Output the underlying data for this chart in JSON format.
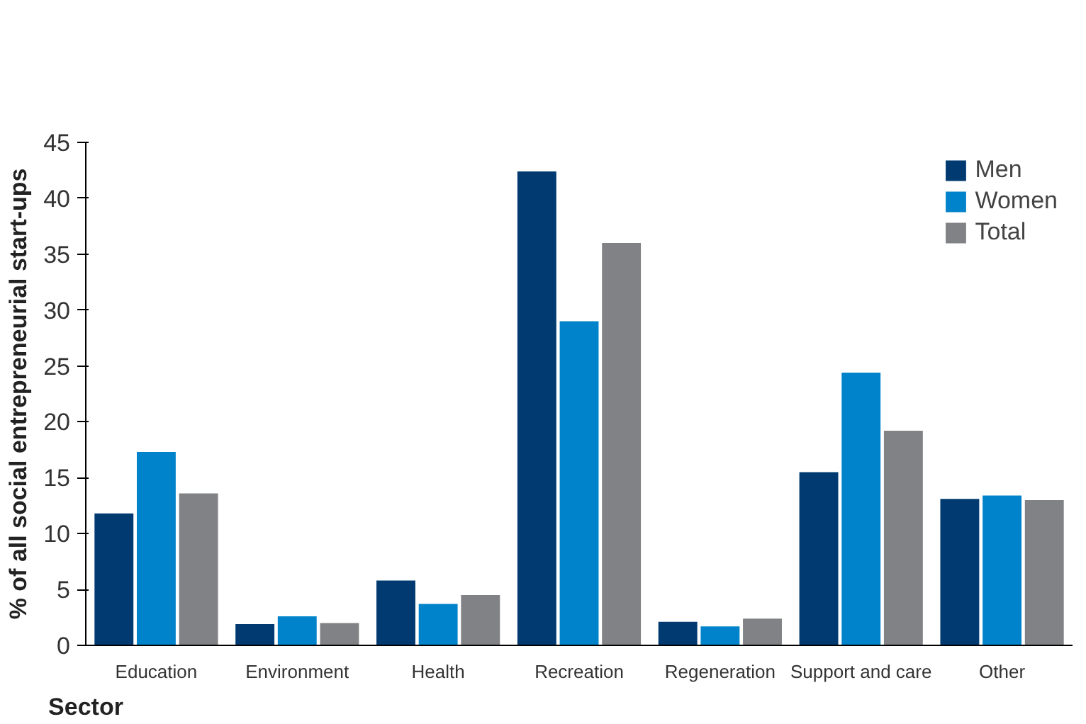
{
  "chart_data": {
    "type": "bar",
    "xlabel": "Sector",
    "ylabel": "% of all social entrepreneurial start-ups",
    "categories": [
      "Education",
      "Environment",
      "Health",
      "Recreation",
      "Regeneration",
      "Support and care",
      "Other"
    ],
    "series": [
      {
        "name": "Men",
        "color": "#003a70",
        "values": [
          11.8,
          1.9,
          5.8,
          42.4,
          2.1,
          15.5,
          13.1
        ]
      },
      {
        "name": "Women",
        "color": "#0083ca",
        "values": [
          17.3,
          2.6,
          3.7,
          29.0,
          1.7,
          24.4,
          13.4
        ]
      },
      {
        "name": "Total",
        "color": "#808285",
        "values": [
          13.6,
          2.0,
          4.5,
          36.0,
          2.4,
          19.2,
          13.0
        ]
      }
    ],
    "ylim": [
      0,
      45
    ],
    "yticks": [
      0,
      5,
      10,
      15,
      20,
      25,
      30,
      35,
      40,
      45
    ],
    "grid": false,
    "legend": "top right"
  }
}
